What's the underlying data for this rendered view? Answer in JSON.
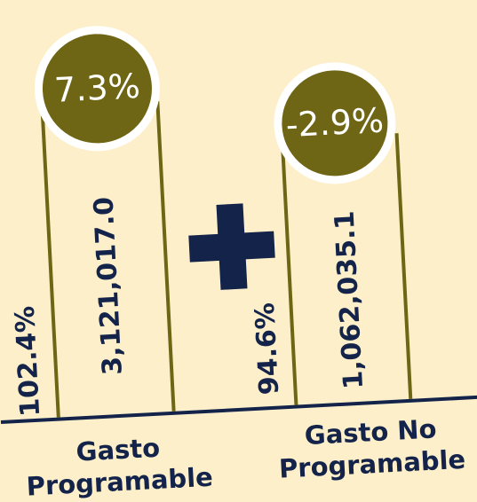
{
  "items": [
    {
      "change": "7.3%",
      "amount": "3,121,017.0",
      "share": "102.4%",
      "label": [
        "Gasto",
        "Programable"
      ]
    },
    {
      "change": "-2.9%",
      "amount": "1,062,035.1",
      "share": "94.6%",
      "label": [
        "Gasto No",
        "Programable"
      ]
    }
  ]
}
